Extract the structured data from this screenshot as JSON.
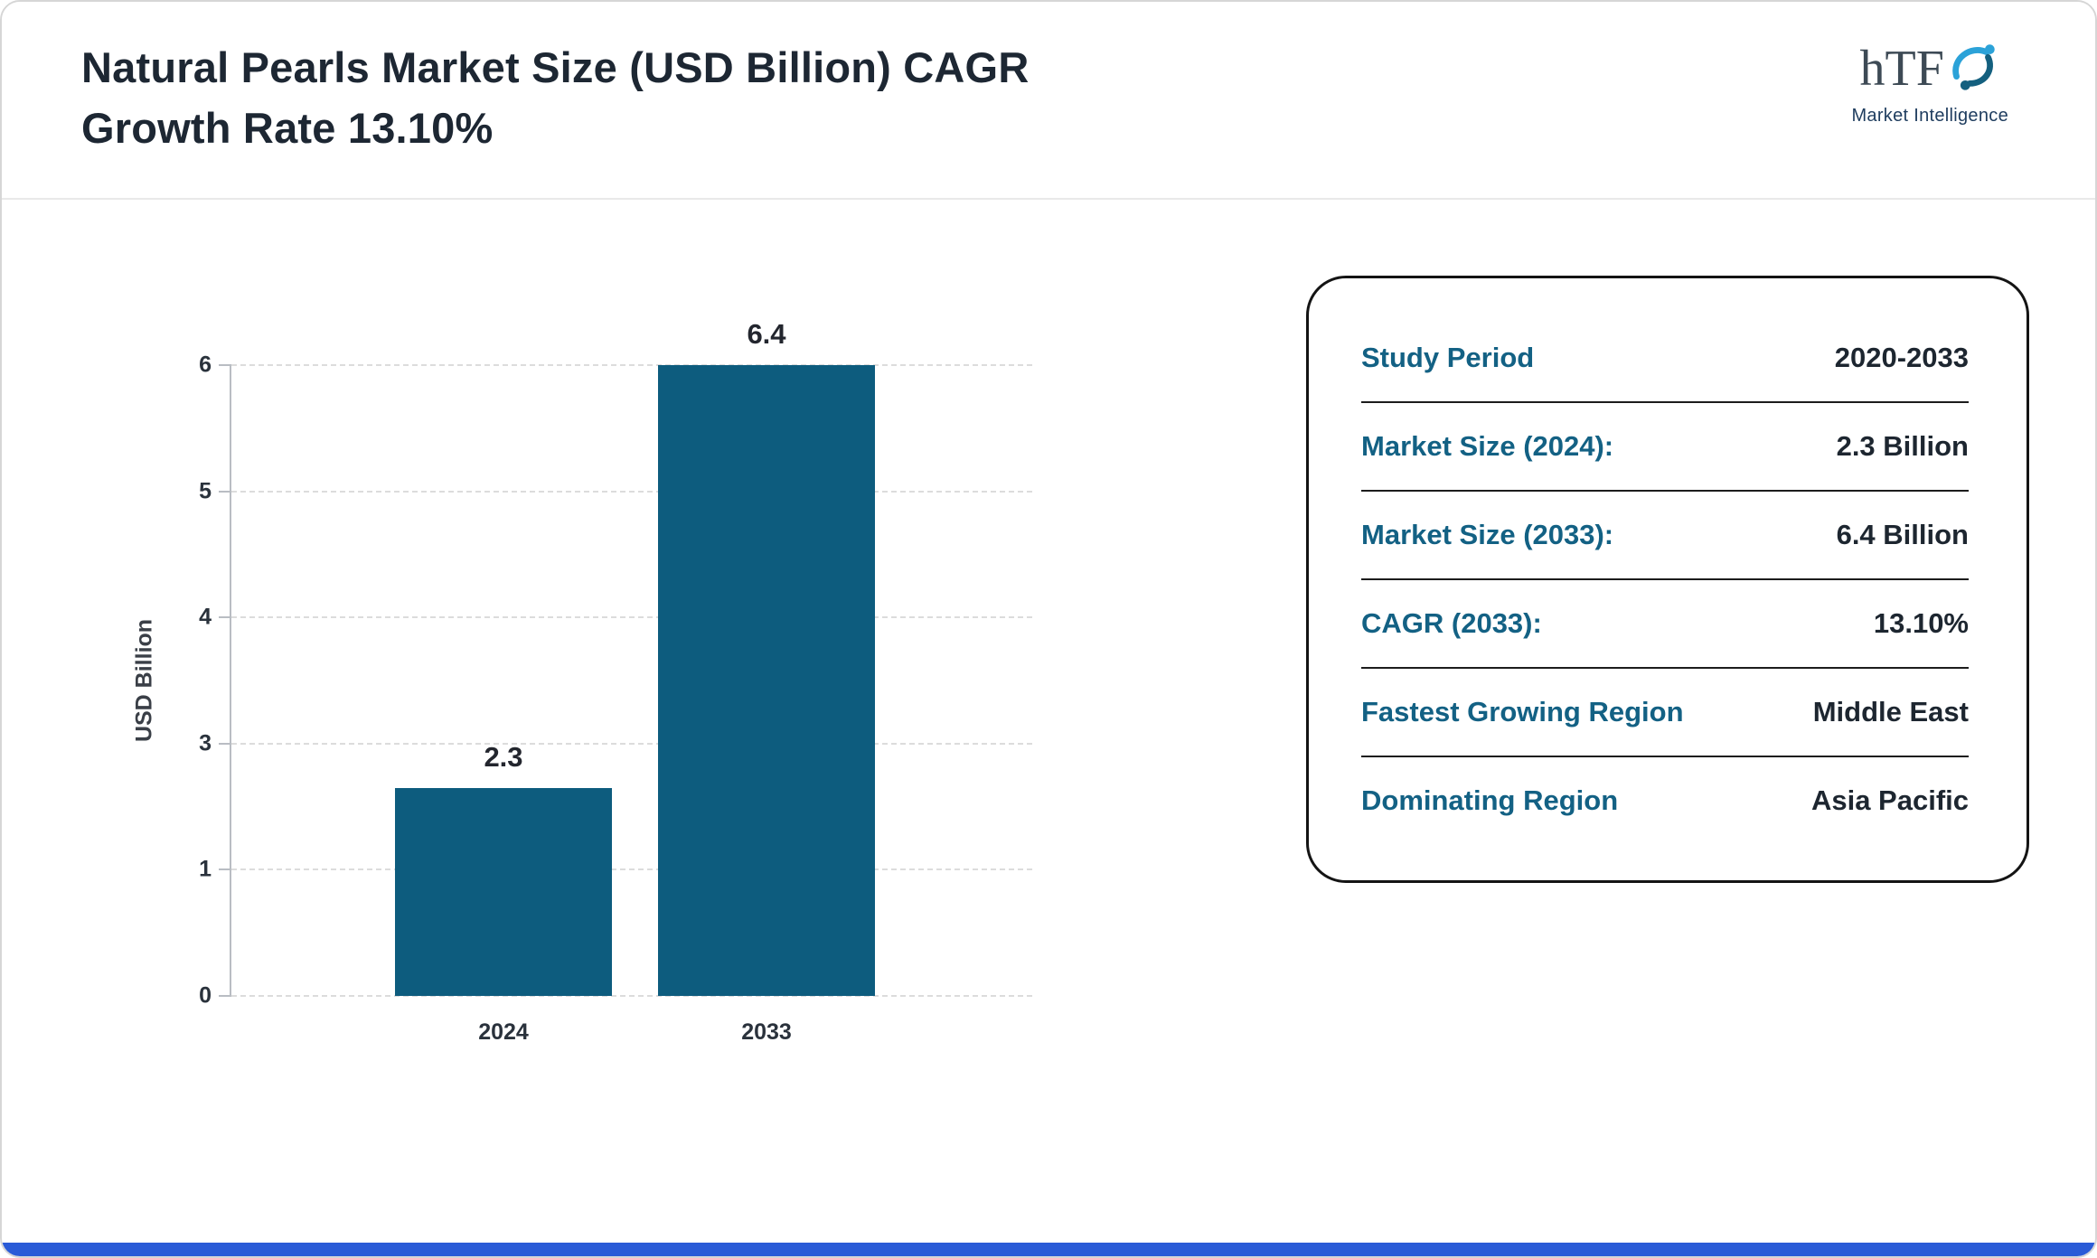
{
  "header": {
    "title_line1": "Natural Pearls Market Size (USD Billion) CAGR",
    "title_line2": "Growth Rate 13.10%",
    "logo": {
      "text": "hTF",
      "subtext": "Market Intelligence"
    }
  },
  "chart_data": {
    "type": "bar",
    "title": "Natural Pearls Market Size (USD Billion) CAGR Growth Rate 13.10%",
    "categories": [
      "2024",
      "2033"
    ],
    "values": [
      2.3,
      6.4
    ],
    "data_labels": [
      "2.3",
      "6.4"
    ],
    "xlabel": "",
    "ylabel": "USD Billion",
    "ylim": [
      0,
      6
    ],
    "ytick_labels": [
      "0",
      "1",
      "3",
      "4",
      "5",
      "6"
    ],
    "grid": "dashed horizontal",
    "legend": "none"
  },
  "summary_card": {
    "rows": [
      {
        "label": "Study Period",
        "value": "2020-2033"
      },
      {
        "label": "Market Size (2024):",
        "value": "2.3 Billion"
      },
      {
        "label": "Market Size (2033):",
        "value": "6.4 Billion"
      },
      {
        "label": "CAGR (2033):",
        "value": "13.10%"
      },
      {
        "label": "Fastest Growing Region",
        "value": "Middle East"
      },
      {
        "label": "Dominating Region",
        "value": "Asia Pacific"
      }
    ]
  },
  "colors": {
    "bar_color": "#0d5c7e",
    "accent_bar": "#2a5bd7",
    "teal_text": "#136184",
    "dark_text": "#1d2630",
    "logo_blue": "#2ba2d8",
    "logo_teal": "#14607f"
  }
}
